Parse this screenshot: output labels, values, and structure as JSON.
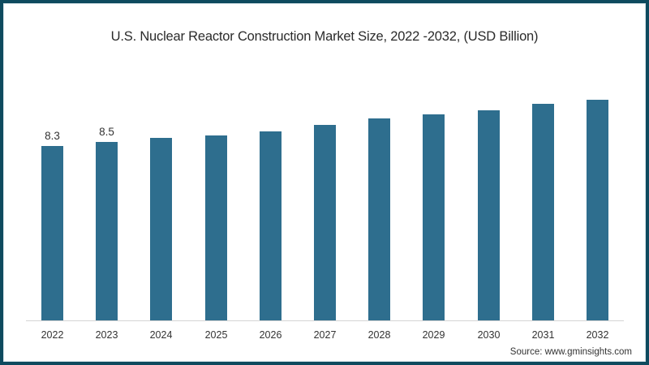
{
  "chart_data": {
    "type": "bar",
    "title": "U.S. Nuclear Reactor Construction Market Size, 2022 -2032, (USD Billion)",
    "xlabel": "",
    "ylabel": "",
    "categories": [
      "2022",
      "2023",
      "2024",
      "2025",
      "2026",
      "2027",
      "2028",
      "2029",
      "2030",
      "2031",
      "2032"
    ],
    "values": [
      8.3,
      8.5,
      8.7,
      8.8,
      9.0,
      9.3,
      9.6,
      9.8,
      10.0,
      10.3,
      10.5
    ],
    "data_labels": [
      "8.3",
      "8.5",
      "",
      "",
      "",
      "",
      "",
      "",
      "",
      "",
      ""
    ],
    "ylim": [
      0,
      11
    ],
    "grid": false,
    "legend": null,
    "bar_color": "#2e6e8e"
  },
  "title": "U.S. Nuclear Reactor Construction Market Size, 2022 -2032, (USD Billion)",
  "source": "Source: www.gminsights.com",
  "colors": {
    "border": "#0e4a5e",
    "bar": "#2e6e8e",
    "background": "#ffffff"
  }
}
